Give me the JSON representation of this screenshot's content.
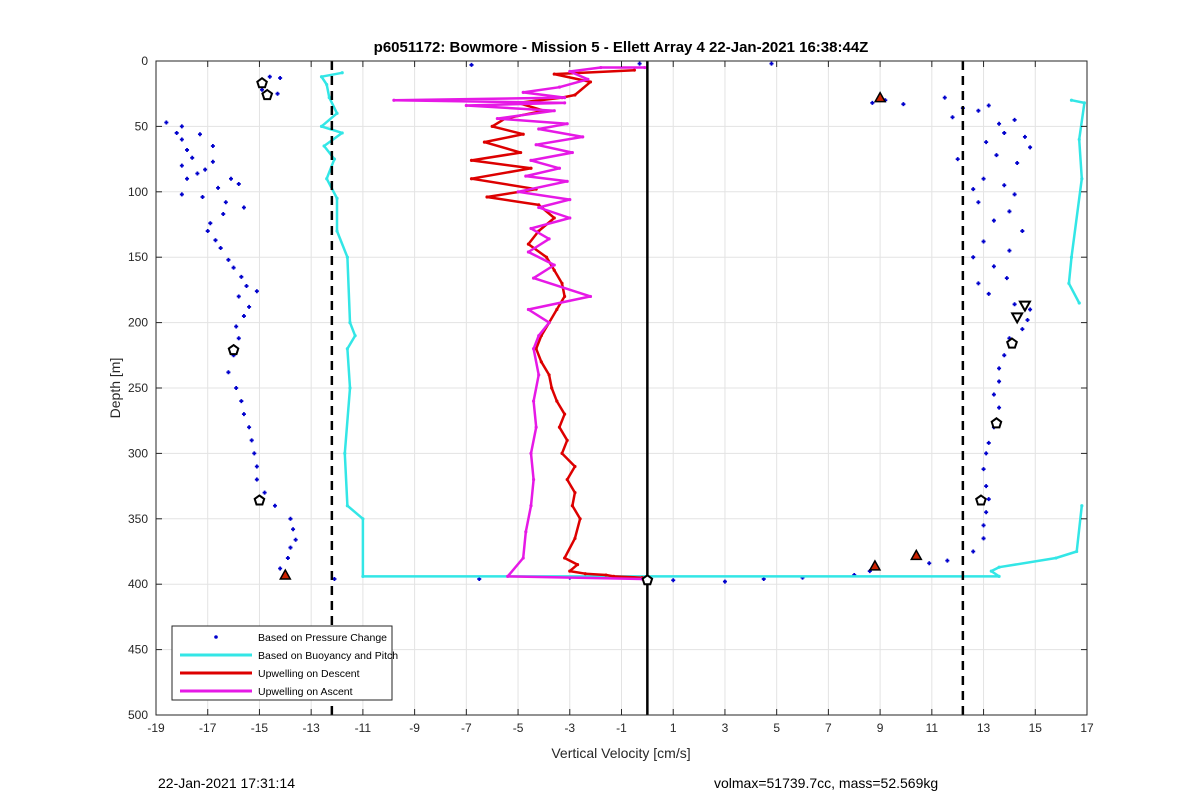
{
  "chart_data": {
    "type": "scatter",
    "title": "p6051172: Bowmore - Mission 5 - Ellett Array 4 22-Jan-2021 16:38:44Z",
    "xlabel": "Vertical Velocity [cm/s]",
    "ylabel": "Depth [m]",
    "xlim": [
      -19,
      17
    ],
    "ylim": [
      0,
      500
    ],
    "y_reversed": true,
    "grid": true,
    "legend_position": "bottom-left",
    "xticks": [
      -19,
      -17,
      -15,
      -13,
      -11,
      -9,
      -7,
      -5,
      -3,
      -1,
      1,
      3,
      5,
      7,
      9,
      11,
      13,
      15,
      17
    ],
    "yticks": [
      0,
      50,
      100,
      150,
      200,
      250,
      300,
      350,
      400,
      450,
      500
    ],
    "vertical_lines": [
      {
        "x": 0,
        "style": "solid",
        "color": "#000000"
      },
      {
        "x": -12.2,
        "style": "dashed",
        "color": "#000000"
      },
      {
        "x": 12.2,
        "style": "dashed",
        "color": "#000000"
      }
    ],
    "series": [
      {
        "name": "Based on Pressure Change",
        "type": "scatter",
        "color": "#0000cc",
        "points": [
          [
            -14.6,
            12
          ],
          [
            -14.2,
            13
          ],
          [
            -14.9,
            22
          ],
          [
            -14.3,
            25
          ],
          [
            -18.6,
            47
          ],
          [
            -18,
            50
          ],
          [
            -18.2,
            55
          ],
          [
            -17.3,
            56
          ],
          [
            -18,
            60
          ],
          [
            -16.8,
            65
          ],
          [
            -17.8,
            68
          ],
          [
            -17.6,
            74
          ],
          [
            -16.8,
            77
          ],
          [
            -18,
            80
          ],
          [
            -17.1,
            83
          ],
          [
            -17.4,
            86
          ],
          [
            -17.8,
            90
          ],
          [
            -16.1,
            90
          ],
          [
            -15.8,
            94
          ],
          [
            -16.6,
            97
          ],
          [
            -18,
            102
          ],
          [
            -17.2,
            104
          ],
          [
            -16.3,
            108
          ],
          [
            -15.6,
            112
          ],
          [
            -16.4,
            117
          ],
          [
            -16.9,
            124
          ],
          [
            -17,
            130
          ],
          [
            -16.7,
            137
          ],
          [
            -16.5,
            143
          ],
          [
            -16.2,
            152
          ],
          [
            -16,
            158
          ],
          [
            -15.7,
            165
          ],
          [
            -15.5,
            172
          ],
          [
            -15.1,
            176
          ],
          [
            -15.8,
            180
          ],
          [
            -15.4,
            188
          ],
          [
            -15.6,
            195
          ],
          [
            -15.9,
            203
          ],
          [
            -15.8,
            212
          ],
          [
            -16,
            225
          ],
          [
            -16.2,
            238
          ],
          [
            -15.9,
            250
          ],
          [
            -15.7,
            260
          ],
          [
            -15.6,
            270
          ],
          [
            -15.4,
            280
          ],
          [
            -15.3,
            290
          ],
          [
            -15.2,
            300
          ],
          [
            -15.1,
            310
          ],
          [
            -15.1,
            320
          ],
          [
            -14.8,
            330
          ],
          [
            -14.4,
            340
          ],
          [
            -13.8,
            350
          ],
          [
            -13.7,
            358
          ],
          [
            -13.6,
            366
          ],
          [
            -13.8,
            372
          ],
          [
            -13.9,
            380
          ],
          [
            -14.2,
            388
          ],
          [
            -12.1,
            396
          ],
          [
            -6.5,
            396
          ],
          [
            -3,
            395
          ],
          [
            1,
            397
          ],
          [
            3,
            398
          ],
          [
            4.5,
            396
          ],
          [
            6,
            395
          ],
          [
            8,
            393
          ],
          [
            8.6,
            390
          ],
          [
            -6.8,
            3
          ],
          [
            -0.3,
            2
          ],
          [
            4.8,
            2
          ],
          [
            8.7,
            32
          ],
          [
            9.2,
            30
          ],
          [
            9.9,
            33
          ],
          [
            11.5,
            28
          ],
          [
            12.2,
            36
          ],
          [
            11.8,
            43
          ],
          [
            13.2,
            34
          ],
          [
            12.8,
            38
          ],
          [
            13.6,
            48
          ],
          [
            14.2,
            45
          ],
          [
            13.8,
            55
          ],
          [
            14.6,
            58
          ],
          [
            13.1,
            62
          ],
          [
            14.8,
            66
          ],
          [
            13.5,
            72
          ],
          [
            14.3,
            78
          ],
          [
            12,
            75
          ],
          [
            13,
            90
          ],
          [
            12.6,
            98
          ],
          [
            13.8,
            95
          ],
          [
            14.2,
            102
          ],
          [
            12.8,
            108
          ],
          [
            14,
            115
          ],
          [
            13.4,
            122
          ],
          [
            14.5,
            130
          ],
          [
            13,
            138
          ],
          [
            14,
            145
          ],
          [
            12.6,
            150
          ],
          [
            13.4,
            157
          ],
          [
            13.9,
            166
          ],
          [
            12.8,
            170
          ],
          [
            13.2,
            178
          ],
          [
            14.2,
            186
          ],
          [
            14.8,
            190
          ],
          [
            14.7,
            198
          ],
          [
            14.5,
            205
          ],
          [
            14,
            212
          ],
          [
            13.8,
            225
          ],
          [
            13.6,
            235
          ],
          [
            13.6,
            245
          ],
          [
            13.4,
            255
          ],
          [
            13.6,
            265
          ],
          [
            13.4,
            280
          ],
          [
            13.2,
            292
          ],
          [
            13.1,
            300
          ],
          [
            13,
            312
          ],
          [
            13.1,
            325
          ],
          [
            13.2,
            335
          ],
          [
            13.1,
            345
          ],
          [
            13,
            355
          ],
          [
            13,
            365
          ],
          [
            12.6,
            375
          ],
          [
            11.6,
            382
          ],
          [
            10.9,
            384
          ]
        ]
      },
      {
        "name": "Based on Buoyancy and Pitch",
        "type": "line",
        "color": "#33e6e6",
        "segments": [
          [
            [
              -11.8,
              9
            ],
            [
              -12.6,
              12
            ],
            [
              -12.4,
              18
            ],
            [
              -12.3,
              28
            ],
            [
              -12,
              40
            ],
            [
              -12.6,
              50
            ],
            [
              -11.8,
              55
            ],
            [
              -12.5,
              65
            ],
            [
              -12.1,
              75
            ],
            [
              -12.4,
              90
            ],
            [
              -12,
              105
            ],
            [
              -12,
              130
            ],
            [
              -11.6,
              150
            ],
            [
              -11.5,
              200
            ],
            [
              -11.3,
              210
            ],
            [
              -11.6,
              220
            ],
            [
              -11.5,
              250
            ],
            [
              -11.7,
              300
            ],
            [
              -11.6,
              340
            ],
            [
              -11,
              350
            ],
            [
              -11,
              394
            ],
            [
              13.6,
              394
            ],
            [
              13.3,
              390
            ],
            [
              13.6,
              387
            ],
            [
              15.8,
              380
            ],
            [
              16.6,
              375
            ],
            [
              16.8,
              340
            ]
          ],
          [
            [
              16.4,
              30
            ],
            [
              16.9,
              32
            ],
            [
              16.7,
              60
            ],
            [
              16.8,
              90
            ],
            [
              16.4,
              150
            ],
            [
              16.3,
              170
            ],
            [
              16.7,
              185
            ]
          ]
        ]
      },
      {
        "name": "Upwelling on Descent",
        "type": "line",
        "color": "#dd0000",
        "points": [
          [
            -0.2,
            395
          ],
          [
            -1.3,
            394
          ],
          [
            -1.6,
            393
          ],
          [
            -2.4,
            392
          ],
          [
            -3,
            390
          ],
          [
            -2.7,
            385
          ],
          [
            -3.2,
            380
          ],
          [
            -2.8,
            365
          ],
          [
            -2.6,
            350
          ],
          [
            -2.9,
            340
          ],
          [
            -2.8,
            330
          ],
          [
            -3.1,
            320
          ],
          [
            -2.8,
            310
          ],
          [
            -3.3,
            300
          ],
          [
            -3.1,
            290
          ],
          [
            -3.4,
            280
          ],
          [
            -3.2,
            270
          ],
          [
            -3.5,
            260
          ],
          [
            -3.7,
            250
          ],
          [
            -3.8,
            240
          ],
          [
            -4.1,
            230
          ],
          [
            -4.3,
            220
          ],
          [
            -4.1,
            210
          ],
          [
            -3.8,
            200
          ],
          [
            -3.5,
            190
          ],
          [
            -3.2,
            180
          ],
          [
            -3.3,
            170
          ],
          [
            -3.6,
            160
          ],
          [
            -3.9,
            150
          ],
          [
            -4.6,
            140
          ],
          [
            -4.2,
            130
          ],
          [
            -3.6,
            120
          ],
          [
            -4.2,
            110
          ],
          [
            -6.2,
            104
          ],
          [
            -4.3,
            98
          ],
          [
            -6.8,
            90
          ],
          [
            -4.5,
            82
          ],
          [
            -6.8,
            76
          ],
          [
            -4.9,
            70
          ],
          [
            -6.3,
            62
          ],
          [
            -4.8,
            56
          ],
          [
            -6,
            50
          ],
          [
            -5.5,
            44
          ],
          [
            -4,
            38
          ],
          [
            -5,
            32
          ],
          [
            -3.3,
            28
          ],
          [
            -2.8,
            26
          ],
          [
            -2.2,
            16
          ],
          [
            -3.6,
            10
          ],
          [
            -0.5,
            7
          ]
        ]
      },
      {
        "name": "Upwelling on Ascent",
        "type": "line",
        "color": "#e619e6",
        "points": [
          [
            -0.1,
            5
          ],
          [
            -1.8,
            5
          ],
          [
            -3,
            8
          ],
          [
            -2.3,
            14
          ],
          [
            -3.4,
            20
          ],
          [
            -4.8,
            24
          ],
          [
            -3.2,
            28
          ],
          [
            -9.8,
            30
          ],
          [
            -3.2,
            32
          ],
          [
            -7,
            34
          ],
          [
            -3.6,
            38
          ],
          [
            -5.8,
            44
          ],
          [
            -3.1,
            48
          ],
          [
            -4.2,
            52
          ],
          [
            -2.5,
            58
          ],
          [
            -4.3,
            64
          ],
          [
            -2.9,
            70
          ],
          [
            -4.5,
            76
          ],
          [
            -3.4,
            82
          ],
          [
            -4.7,
            88
          ],
          [
            -3.1,
            92
          ],
          [
            -5,
            100
          ],
          [
            -3,
            106
          ],
          [
            -4.2,
            112
          ],
          [
            -3,
            120
          ],
          [
            -4.5,
            128
          ],
          [
            -3.8,
            136
          ],
          [
            -4.6,
            146
          ],
          [
            -3.6,
            156
          ],
          [
            -4.4,
            166
          ],
          [
            -2.2,
            180
          ],
          [
            -4.6,
            190
          ],
          [
            -3.8,
            200
          ],
          [
            -4.2,
            210
          ],
          [
            -4.4,
            220
          ],
          [
            -4.2,
            240
          ],
          [
            -4.4,
            260
          ],
          [
            -4.3,
            280
          ],
          [
            -4.5,
            300
          ],
          [
            -4.4,
            320
          ],
          [
            -4.5,
            340
          ],
          [
            -4.7,
            360
          ],
          [
            -4.8,
            380
          ],
          [
            -5.4,
            394
          ],
          [
            -0.2,
            396
          ]
        ]
      }
    ],
    "markers": [
      {
        "type": "red-up-triangle",
        "points": [
          [
            9,
            28
          ],
          [
            10.4,
            378
          ],
          [
            8.8,
            386
          ],
          [
            -14,
            393
          ]
        ]
      },
      {
        "type": "open-pentagon",
        "points": [
          [
            -14.9,
            17
          ],
          [
            -14.7,
            26
          ],
          [
            -16,
            221
          ],
          [
            -15,
            336
          ],
          [
            14.1,
            216
          ],
          [
            13.5,
            277
          ],
          [
            12.9,
            336
          ],
          [
            0,
            397
          ]
        ]
      },
      {
        "type": "open-down-triangle",
        "points": [
          [
            14.6,
            187
          ],
          [
            14.3,
            196
          ]
        ]
      }
    ]
  },
  "footer": {
    "left": "22-Jan-2021 17:31:14",
    "right": "volmax=51739.7cc, mass=52.569kg"
  }
}
